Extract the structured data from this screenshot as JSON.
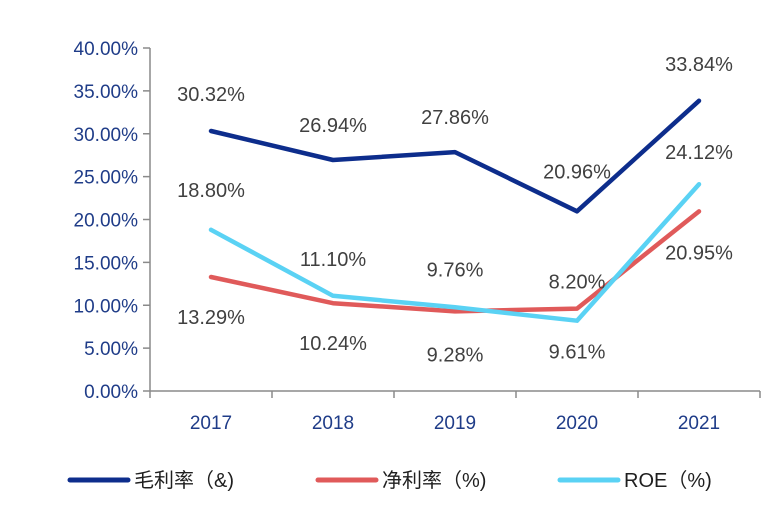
{
  "chart_data": {
    "type": "line",
    "x": [
      "2017",
      "2018",
      "2019",
      "2020",
      "2021"
    ],
    "ylim": [
      0,
      40
    ],
    "y_ticks": [
      "0.00%",
      "5.00%",
      "10.00%",
      "15.00%",
      "20.00%",
      "25.00%",
      "30.00%",
      "35.00%",
      "40.00%"
    ],
    "grid": false,
    "legend_position": "bottom",
    "series": [
      {
        "name": "毛利率（&)",
        "color": "#0d2d8c",
        "values": [
          30.32,
          26.94,
          27.86,
          20.96,
          33.84
        ],
        "labels": [
          "30.32%",
          "26.94%",
          "27.86%",
          "20.96%",
          "33.84%"
        ]
      },
      {
        "name": "净利率（%)",
        "color": "#e05a5a",
        "values": [
          13.29,
          10.24,
          9.28,
          9.61,
          20.95
        ],
        "labels": [
          "13.29%",
          "10.24%",
          "9.28%",
          "9.61%",
          "20.95%"
        ]
      },
      {
        "name": "ROE（%)",
        "color": "#5ad2f4",
        "values": [
          18.8,
          11.1,
          9.76,
          8.2,
          24.12
        ],
        "labels": [
          "18.80%",
          "11.10%",
          "9.76%",
          "8.20%",
          "24.12%"
        ]
      }
    ]
  }
}
